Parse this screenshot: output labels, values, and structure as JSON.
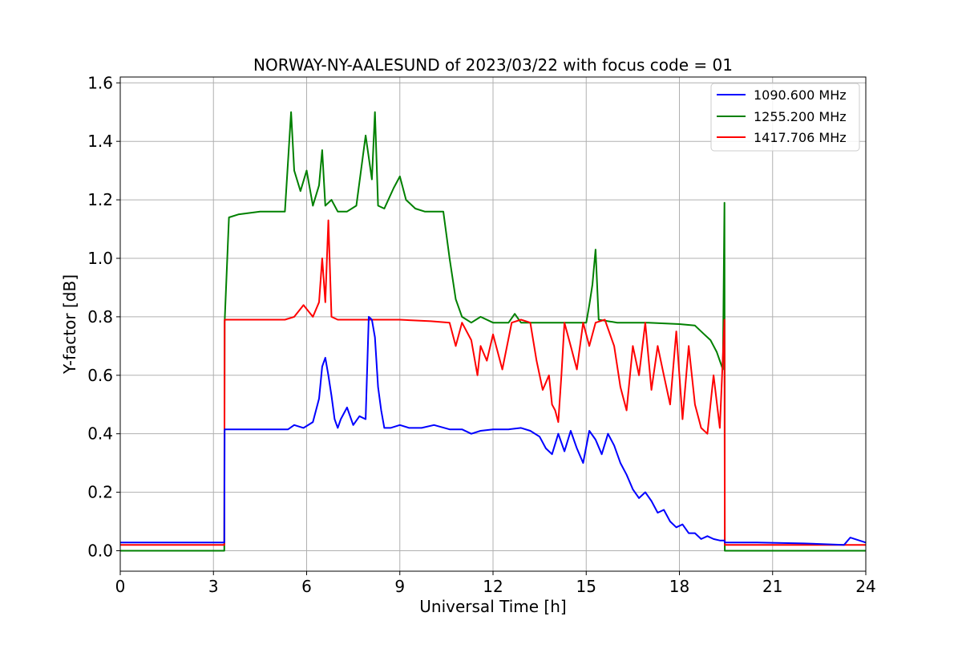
{
  "chart_data": {
    "type": "line",
    "title": "NORWAY-NY-AALESUND of 2023/03/22 with focus code = 01",
    "xlabel": "Universal Time [h]",
    "ylabel": "Y-factor [dB]",
    "xlim": [
      0,
      24
    ],
    "ylim": [
      -0.07,
      1.62
    ],
    "xticks": [
      0,
      3,
      6,
      9,
      12,
      15,
      18,
      21,
      24
    ],
    "xtick_labels": [
      "0",
      "3",
      "6",
      "9",
      "12",
      "15",
      "18",
      "21",
      "24"
    ],
    "yticks": [
      0.0,
      0.2,
      0.4,
      0.6,
      0.8,
      1.0,
      1.2,
      1.4,
      1.6
    ],
    "ytick_labels": [
      "0.0",
      "0.2",
      "0.4",
      "0.6",
      "0.8",
      "1.0",
      "1.2",
      "1.4",
      "1.6"
    ],
    "grid": true,
    "legend_position": "top-right",
    "series": [
      {
        "name": "1090.600 MHz",
        "color": "#0000ff",
        "x": [
          0,
          3.35,
          3.36,
          5.4,
          5.6,
          5.9,
          6.2,
          6.4,
          6.5,
          6.6,
          6.7,
          6.8,
          6.9,
          7.0,
          7.1,
          7.3,
          7.5,
          7.7,
          7.9,
          8.0,
          8.1,
          8.2,
          8.3,
          8.4,
          8.5,
          8.7,
          9.0,
          9.3,
          9.7,
          10.1,
          10.6,
          11.0,
          11.3,
          11.6,
          12.0,
          12.5,
          12.9,
          13.2,
          13.5,
          13.7,
          13.9,
          14.1,
          14.3,
          14.5,
          14.7,
          14.9,
          15.1,
          15.3,
          15.5,
          15.7,
          15.9,
          16.1,
          16.3,
          16.5,
          16.7,
          16.9,
          17.1,
          17.3,
          17.5,
          17.7,
          17.9,
          18.1,
          18.3,
          18.5,
          18.7,
          18.9,
          19.1,
          19.3,
          19.45,
          19.46,
          20.5,
          22.0,
          23.3,
          23.5,
          24
        ],
        "y": [
          0.028,
          0.028,
          0.415,
          0.415,
          0.43,
          0.42,
          0.44,
          0.52,
          0.63,
          0.66,
          0.6,
          0.53,
          0.45,
          0.42,
          0.45,
          0.49,
          0.43,
          0.46,
          0.45,
          0.8,
          0.79,
          0.73,
          0.56,
          0.48,
          0.42,
          0.42,
          0.43,
          0.42,
          0.42,
          0.43,
          0.415,
          0.415,
          0.4,
          0.41,
          0.415,
          0.415,
          0.42,
          0.41,
          0.39,
          0.35,
          0.33,
          0.4,
          0.34,
          0.41,
          0.35,
          0.3,
          0.41,
          0.38,
          0.33,
          0.4,
          0.36,
          0.3,
          0.26,
          0.21,
          0.18,
          0.2,
          0.17,
          0.13,
          0.14,
          0.1,
          0.08,
          0.09,
          0.06,
          0.06,
          0.04,
          0.05,
          0.04,
          0.035,
          0.035,
          0.028,
          0.028,
          0.025,
          0.02,
          0.045,
          0.028
        ]
      },
      {
        "name": "1255.200 MHz",
        "color": "#008000",
        "x": [
          0,
          3.35,
          3.36,
          3.5,
          3.8,
          4.5,
          5.3,
          5.5,
          5.6,
          5.8,
          6.0,
          6.2,
          6.4,
          6.5,
          6.6,
          6.8,
          7.0,
          7.3,
          7.6,
          7.9,
          8.1,
          8.2,
          8.3,
          8.5,
          8.8,
          9.0,
          9.2,
          9.5,
          9.8,
          10.1,
          10.4,
          10.6,
          10.8,
          11.0,
          11.3,
          11.6,
          12.0,
          12.5,
          12.7,
          12.9,
          13.3,
          14.0,
          14.5,
          15.0,
          15.1,
          15.2,
          15.3,
          15.4,
          16.0,
          17.0,
          18.0,
          18.5,
          18.8,
          19.0,
          19.2,
          19.4,
          19.45,
          19.46,
          20.5,
          24
        ],
        "y": [
          0.0,
          0.0,
          0.78,
          1.14,
          1.15,
          1.16,
          1.16,
          1.5,
          1.3,
          1.23,
          1.3,
          1.18,
          1.25,
          1.37,
          1.18,
          1.2,
          1.16,
          1.16,
          1.18,
          1.42,
          1.27,
          1.5,
          1.18,
          1.17,
          1.24,
          1.28,
          1.2,
          1.17,
          1.16,
          1.16,
          1.16,
          1.0,
          0.86,
          0.8,
          0.78,
          0.8,
          0.78,
          0.78,
          0.81,
          0.78,
          0.78,
          0.78,
          0.78,
          0.78,
          0.84,
          0.91,
          1.03,
          0.79,
          0.78,
          0.78,
          0.775,
          0.77,
          0.74,
          0.72,
          0.68,
          0.62,
          1.19,
          0.0,
          0.0,
          0.0
        ]
      },
      {
        "name": "1417.706 MHz",
        "color": "#ff0000",
        "x": [
          0,
          3.35,
          3.36,
          5.3,
          5.6,
          5.9,
          6.2,
          6.4,
          6.5,
          6.6,
          6.7,
          6.8,
          7.0,
          7.5,
          8.0,
          9.0,
          10.0,
          10.6,
          10.8,
          11.0,
          11.3,
          11.5,
          11.6,
          11.8,
          12.0,
          12.3,
          12.6,
          12.9,
          13.2,
          13.4,
          13.6,
          13.8,
          13.9,
          14.0,
          14.1,
          14.2,
          14.3,
          14.5,
          14.7,
          14.9,
          15.1,
          15.3,
          15.6,
          15.9,
          16.1,
          16.3,
          16.5,
          16.7,
          16.9,
          17.1,
          17.3,
          17.5,
          17.7,
          17.9,
          18.1,
          18.3,
          18.5,
          18.7,
          18.9,
          19.1,
          19.3,
          19.45,
          19.46,
          24
        ],
        "y": [
          0.02,
          0.02,
          0.79,
          0.79,
          0.8,
          0.84,
          0.8,
          0.85,
          1.0,
          0.85,
          1.13,
          0.8,
          0.79,
          0.79,
          0.79,
          0.79,
          0.785,
          0.78,
          0.7,
          0.78,
          0.72,
          0.6,
          0.7,
          0.65,
          0.74,
          0.62,
          0.78,
          0.79,
          0.78,
          0.65,
          0.55,
          0.6,
          0.5,
          0.48,
          0.44,
          0.6,
          0.78,
          0.7,
          0.62,
          0.78,
          0.7,
          0.78,
          0.79,
          0.7,
          0.56,
          0.48,
          0.7,
          0.6,
          0.78,
          0.55,
          0.7,
          0.6,
          0.5,
          0.75,
          0.45,
          0.7,
          0.5,
          0.42,
          0.4,
          0.6,
          0.42,
          0.79,
          0.02,
          0.02
        ]
      }
    ]
  }
}
